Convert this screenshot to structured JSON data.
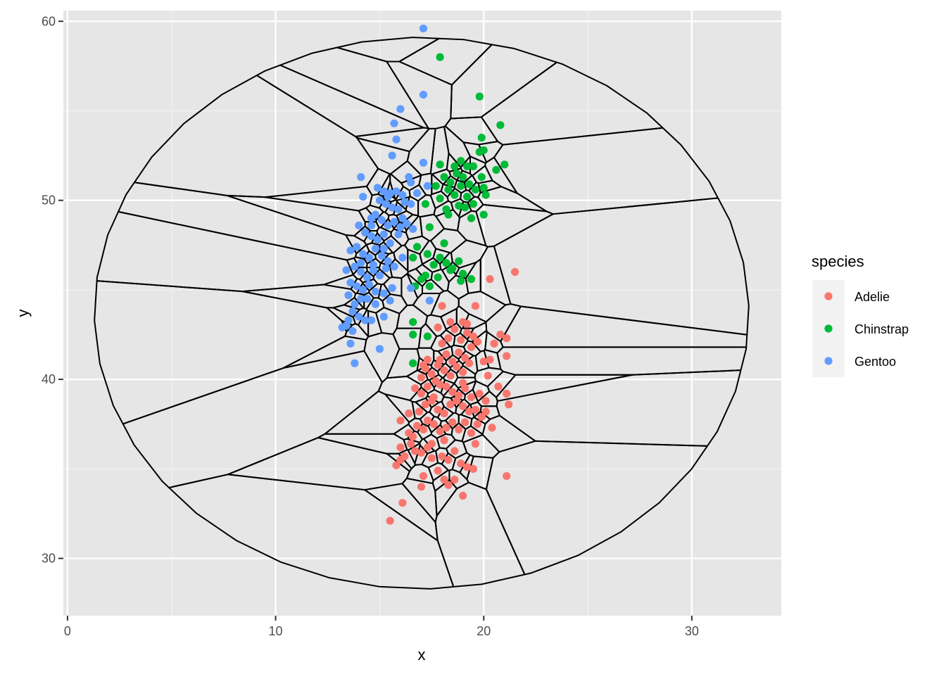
{
  "chart_data": {
    "type": "scatter",
    "title": "",
    "xlabel": "x",
    "ylabel": "y",
    "xlim": [
      -0.2,
      34.3
    ],
    "ylim": [
      26.8,
      60.6
    ],
    "x_ticks": [
      0,
      10,
      20,
      30
    ],
    "y_ticks": [
      30,
      40,
      50,
      60
    ],
    "x_tick_labels": [
      "0",
      "10",
      "20",
      "30"
    ],
    "y_tick_labels": [
      "30",
      "40",
      "50",
      "60"
    ],
    "grid": true,
    "background": "#e6e6e6",
    "overlay": "voronoi tessellation (black lines) clipped to an ellipse",
    "legend": {
      "title": "species",
      "position": "right",
      "entries": [
        "Adelie",
        "Chinstrap",
        "Gentoo"
      ]
    },
    "series": [
      {
        "name": "Adelie",
        "color": "#F8766D",
        "points": [
          [
            15.5,
            32.1
          ],
          [
            16.1,
            33.1
          ],
          [
            17.0,
            34.0
          ],
          [
            17.1,
            34.6
          ],
          [
            18.1,
            34.4
          ],
          [
            18.3,
            34.1
          ],
          [
            18.6,
            34.4
          ],
          [
            19.0,
            33.5
          ],
          [
            21.1,
            34.6
          ],
          [
            15.8,
            35.2
          ],
          [
            16.0,
            35.5
          ],
          [
            16.2,
            35.7
          ],
          [
            16.0,
            36.2
          ],
          [
            16.5,
            36.4
          ],
          [
            16.7,
            36.0
          ],
          [
            17.0,
            35.9
          ],
          [
            17.3,
            36.2
          ],
          [
            17.5,
            35.6
          ],
          [
            17.8,
            34.9
          ],
          [
            18.0,
            35.7
          ],
          [
            18.3,
            35.5
          ],
          [
            18.6,
            36.0
          ],
          [
            18.9,
            35.3
          ],
          [
            19.2,
            35.1
          ],
          [
            19.5,
            35.0
          ],
          [
            19.6,
            36.4
          ],
          [
            16.4,
            37.0
          ],
          [
            16.6,
            36.8
          ],
          [
            16.8,
            37.4
          ],
          [
            17.1,
            37.2
          ],
          [
            17.3,
            37.7
          ],
          [
            17.6,
            37.5
          ],
          [
            17.9,
            37.1
          ],
          [
            18.2,
            37.3
          ],
          [
            18.5,
            37.6
          ],
          [
            18.8,
            37.2
          ],
          [
            19.1,
            37.6
          ],
          [
            19.4,
            37.0
          ],
          [
            19.7,
            37.5
          ],
          [
            16.0,
            37.7
          ],
          [
            16.4,
            38.1
          ],
          [
            16.9,
            38.2
          ],
          [
            17.2,
            38.6
          ],
          [
            17.5,
            38.8
          ],
          [
            17.8,
            38.3
          ],
          [
            18.1,
            38.1
          ],
          [
            18.4,
            38.6
          ],
          [
            18.7,
            38.8
          ],
          [
            19.0,
            38.5
          ],
          [
            19.3,
            38.2
          ],
          [
            19.6,
            38.3
          ],
          [
            19.9,
            37.9
          ],
          [
            20.1,
            38.2
          ],
          [
            20.4,
            37.3
          ],
          [
            16.7,
            39.5
          ],
          [
            17.0,
            39.2
          ],
          [
            17.3,
            39.6
          ],
          [
            17.6,
            39.0
          ],
          [
            17.9,
            39.7
          ],
          [
            18.2,
            39.6
          ],
          [
            18.5,
            39.3
          ],
          [
            18.8,
            39.1
          ],
          [
            19.1,
            39.5
          ],
          [
            19.4,
            39.0
          ],
          [
            19.8,
            39.2
          ],
          [
            20.1,
            38.8
          ],
          [
            20.7,
            39.6
          ],
          [
            21.1,
            39.2
          ],
          [
            21.2,
            38.6
          ],
          [
            17.0,
            40.1
          ],
          [
            17.2,
            40.6
          ],
          [
            17.5,
            40.3
          ],
          [
            17.8,
            40.8
          ],
          [
            18.1,
            40.5
          ],
          [
            18.4,
            40.2
          ],
          [
            18.7,
            40.7
          ],
          [
            19.0,
            40.4
          ],
          [
            19.3,
            40.9
          ],
          [
            17.3,
            41.1
          ],
          [
            17.9,
            41.1
          ],
          [
            18.2,
            41.4
          ],
          [
            18.5,
            41.0
          ],
          [
            18.8,
            41.5
          ],
          [
            19.1,
            41.2
          ],
          [
            19.4,
            41.8
          ],
          [
            18.0,
            42.0
          ],
          [
            18.3,
            42.3
          ],
          [
            18.6,
            42.8
          ],
          [
            18.9,
            42.2
          ],
          [
            19.2,
            42.6
          ],
          [
            19.5,
            42.4
          ],
          [
            19.7,
            42.1
          ],
          [
            20.0,
            41.0
          ],
          [
            20.3,
            41.1
          ],
          [
            20.2,
            40.2
          ],
          [
            20.5,
            42.0
          ],
          [
            20.8,
            42.5
          ],
          [
            21.1,
            42.3
          ],
          [
            21.1,
            41.3
          ],
          [
            17.8,
            42.9
          ],
          [
            18.4,
            43.2
          ],
          [
            19.0,
            43.2
          ],
          [
            19.2,
            43.1
          ],
          [
            18.0,
            44.1
          ],
          [
            19.6,
            44.1
          ],
          [
            20.3,
            45.6
          ],
          [
            21.5,
            46.0
          ],
          [
            17.1,
            40.8
          ],
          [
            17.7,
            39.9
          ],
          [
            19.0,
            39.8
          ],
          [
            18.1,
            36.6
          ],
          [
            17.5,
            36.4
          ]
        ]
      },
      {
        "name": "Chinstrap",
        "color": "#00BA38",
        "points": [
          [
            17.9,
            58.0
          ],
          [
            19.8,
            55.8
          ],
          [
            20.8,
            54.2
          ],
          [
            19.9,
            53.5
          ],
          [
            20.0,
            52.8
          ],
          [
            19.8,
            52.7
          ],
          [
            21.0,
            52.0
          ],
          [
            20.6,
            51.7
          ],
          [
            17.9,
            52.0
          ],
          [
            18.6,
            51.9
          ],
          [
            18.9,
            52.2
          ],
          [
            19.2,
            51.9
          ],
          [
            19.5,
            51.9
          ],
          [
            19.9,
            51.3
          ],
          [
            18.1,
            51.3
          ],
          [
            18.4,
            51.0
          ],
          [
            18.7,
            51.5
          ],
          [
            19.0,
            51.3
          ],
          [
            19.3,
            50.9
          ],
          [
            19.6,
            50.6
          ],
          [
            20.0,
            50.7
          ],
          [
            20.1,
            50.3
          ],
          [
            17.7,
            50.8
          ],
          [
            17.9,
            50.1
          ],
          [
            18.3,
            50.6
          ],
          [
            18.6,
            50.3
          ],
          [
            18.9,
            50.8
          ],
          [
            19.2,
            50.2
          ],
          [
            19.5,
            49.8
          ],
          [
            20.0,
            49.2
          ],
          [
            17.2,
            49.8
          ],
          [
            18.2,
            49.5
          ],
          [
            18.3,
            49.2
          ],
          [
            18.8,
            49.7
          ],
          [
            19.1,
            49.6
          ],
          [
            19.4,
            49.0
          ],
          [
            17.4,
            48.5
          ],
          [
            16.8,
            47.4
          ],
          [
            17.3,
            47.0
          ],
          [
            17.6,
            46.4
          ],
          [
            17.9,
            46.8
          ],
          [
            18.2,
            46.5
          ],
          [
            18.5,
            46.2
          ],
          [
            18.8,
            46.6
          ],
          [
            19.0,
            45.9
          ],
          [
            17.8,
            45.7
          ],
          [
            17.2,
            45.8
          ],
          [
            17.0,
            45.6
          ],
          [
            17.4,
            45.2
          ],
          [
            16.7,
            45.2
          ],
          [
            16.6,
            46.8
          ],
          [
            18.1,
            47.6
          ],
          [
            18.4,
            46.1
          ],
          [
            18.9,
            45.5
          ],
          [
            19.4,
            45.6
          ],
          [
            16.6,
            43.2
          ],
          [
            16.6,
            42.5
          ],
          [
            17.3,
            42.4
          ],
          [
            16.6,
            40.9
          ]
        ]
      },
      {
        "name": "Gentoo",
        "color": "#619CFF",
        "points": [
          [
            17.1,
            59.6
          ],
          [
            17.1,
            55.9
          ],
          [
            16.0,
            55.1
          ],
          [
            15.7,
            54.3
          ],
          [
            15.8,
            53.4
          ],
          [
            15.6,
            52.5
          ],
          [
            17.1,
            52.1
          ],
          [
            14.1,
            51.3
          ],
          [
            14.2,
            50.2
          ],
          [
            14.9,
            50.7
          ],
          [
            15.2,
            50.5
          ],
          [
            15.5,
            50.4
          ],
          [
            15.8,
            50.5
          ],
          [
            16.1,
            50.3
          ],
          [
            16.4,
            51.3
          ],
          [
            16.5,
            51.0
          ],
          [
            16.8,
            50.4
          ],
          [
            17.3,
            50.8
          ],
          [
            15.0,
            50.0
          ],
          [
            15.3,
            49.8
          ],
          [
            15.6,
            49.6
          ],
          [
            15.9,
            49.5
          ],
          [
            16.2,
            49.9
          ],
          [
            16.5,
            49.8
          ],
          [
            14.6,
            49.0
          ],
          [
            14.8,
            49.2
          ],
          [
            15.1,
            48.9
          ],
          [
            15.4,
            48.6
          ],
          [
            15.7,
            48.8
          ],
          [
            16.0,
            48.5
          ],
          [
            16.3,
            48.7
          ],
          [
            16.6,
            48.4
          ],
          [
            14.0,
            48.6
          ],
          [
            14.3,
            48.2
          ],
          [
            14.6,
            48.0
          ],
          [
            14.9,
            47.8
          ],
          [
            15.2,
            48.1
          ],
          [
            15.5,
            47.6
          ],
          [
            15.9,
            48.1
          ],
          [
            13.6,
            47.2
          ],
          [
            13.9,
            47.4
          ],
          [
            14.2,
            47.0
          ],
          [
            14.5,
            46.8
          ],
          [
            14.8,
            47.3
          ],
          [
            15.1,
            46.9
          ],
          [
            15.4,
            46.6
          ],
          [
            15.7,
            46.3
          ],
          [
            16.1,
            46.8
          ],
          [
            13.4,
            46.1
          ],
          [
            13.8,
            46.3
          ],
          [
            14.1,
            46.0
          ],
          [
            14.4,
            45.7
          ],
          [
            14.7,
            46.1
          ],
          [
            15.0,
            45.8
          ],
          [
            15.3,
            46.2
          ],
          [
            15.6,
            45.1
          ],
          [
            16.5,
            45.1
          ],
          [
            13.6,
            45.4
          ],
          [
            13.9,
            45.2
          ],
          [
            14.2,
            45.0
          ],
          [
            14.5,
            45.3
          ],
          [
            14.8,
            44.9
          ],
          [
            15.2,
            44.8
          ],
          [
            15.5,
            44.4
          ],
          [
            13.5,
            44.7
          ],
          [
            13.8,
            44.2
          ],
          [
            14.1,
            44.5
          ],
          [
            14.4,
            44.5
          ],
          [
            14.8,
            44.2
          ],
          [
            17.4,
            44.4
          ],
          [
            13.7,
            43.8
          ],
          [
            14.0,
            43.5
          ],
          [
            14.3,
            43.3
          ],
          [
            13.4,
            43.0
          ],
          [
            13.7,
            42.7
          ],
          [
            13.2,
            42.9
          ],
          [
            14.6,
            43.3
          ],
          [
            15.2,
            43.5
          ],
          [
            13.6,
            42.0
          ],
          [
            15.0,
            41.7
          ],
          [
            13.8,
            40.9
          ],
          [
            14.1,
            46.5
          ],
          [
            14.7,
            46.4
          ],
          [
            15.2,
            47.3
          ],
          [
            13.5,
            43.3
          ],
          [
            14.6,
            48.6
          ],
          [
            15.4,
            50.2
          ],
          [
            16.1,
            49.0
          ]
        ]
      }
    ]
  }
}
